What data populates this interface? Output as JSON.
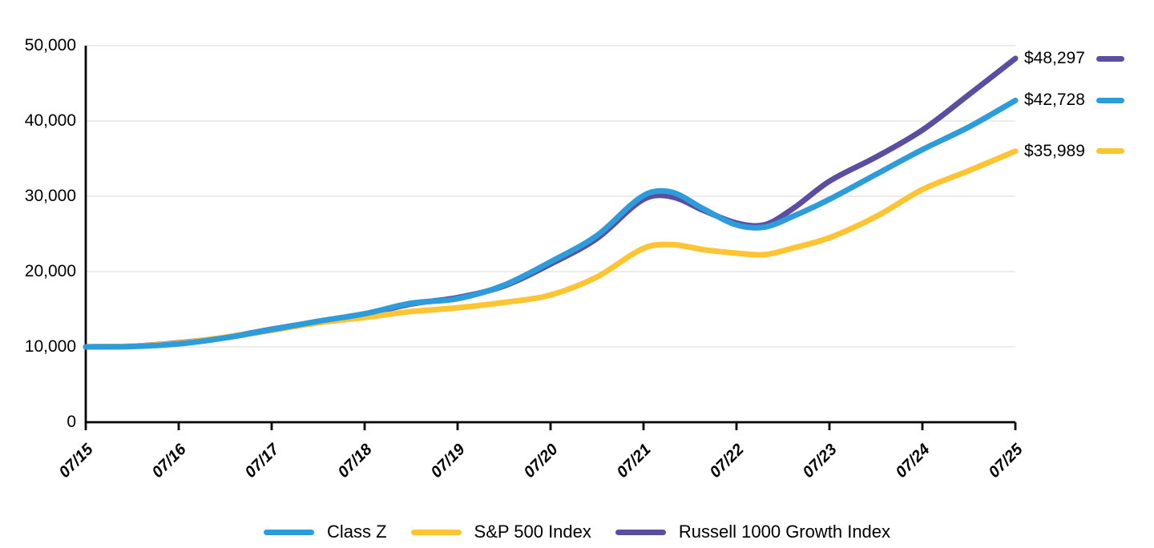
{
  "chart_data": {
    "type": "line",
    "title": "",
    "x_axis": {
      "tick_labels": [
        "07/15",
        "07/16",
        "07/17",
        "07/18",
        "07/19",
        "07/20",
        "07/21",
        "07/22",
        "07/23",
        "07/24",
        "07/25"
      ]
    },
    "y_axis": {
      "min": 0,
      "max": 50000,
      "ticks": [
        {
          "value": 0,
          "label": "0"
        },
        {
          "value": 10000,
          "label": "10,000"
        },
        {
          "value": 20000,
          "label": "20,000"
        },
        {
          "value": 30000,
          "label": "30,000"
        },
        {
          "value": 40000,
          "label": "40,000"
        },
        {
          "value": 50000,
          "label": "50,000"
        }
      ]
    },
    "grid": "horizontal",
    "legend_position": "bottom",
    "draw_order": [
      2,
      1,
      0
    ],
    "series": [
      {
        "name": "Class Z",
        "color": "#2D9CDB",
        "end_label": "$42,728",
        "end_value": 42728,
        "points": [
          [
            0,
            10000
          ],
          [
            0.5,
            10050
          ],
          [
            1,
            10400
          ],
          [
            1.5,
            11200
          ],
          [
            2,
            12300
          ],
          [
            2.5,
            13400
          ],
          [
            3,
            14400
          ],
          [
            3.5,
            15800
          ],
          [
            4,
            16400
          ],
          [
            4.5,
            18200
          ],
          [
            5,
            21300
          ],
          [
            5.5,
            24800
          ],
          [
            6,
            30100
          ],
          [
            6.3,
            30550
          ],
          [
            6.65,
            28300
          ],
          [
            7,
            26200
          ],
          [
            7.3,
            25900
          ],
          [
            7.6,
            27300
          ],
          [
            8,
            29600
          ],
          [
            8.5,
            32900
          ],
          [
            9,
            36200
          ],
          [
            9.5,
            39200
          ],
          [
            10,
            42728
          ]
        ]
      },
      {
        "name": "S&P 500 Index",
        "color": "#FFC431",
        "end_label": "$35,989",
        "end_value": 35989,
        "points": [
          [
            0,
            10000
          ],
          [
            0.5,
            10100
          ],
          [
            1,
            10500
          ],
          [
            1.5,
            11300
          ],
          [
            2,
            12200
          ],
          [
            2.5,
            13200
          ],
          [
            3,
            13900
          ],
          [
            3.5,
            14700
          ],
          [
            4,
            15200
          ],
          [
            4.5,
            15900
          ],
          [
            5,
            16900
          ],
          [
            5.5,
            19300
          ],
          [
            6,
            23100
          ],
          [
            6.3,
            23600
          ],
          [
            6.65,
            22900
          ],
          [
            7,
            22450
          ],
          [
            7.3,
            22250
          ],
          [
            7.6,
            23100
          ],
          [
            8,
            24500
          ],
          [
            8.5,
            27300
          ],
          [
            9,
            30900
          ],
          [
            9.5,
            33400
          ],
          [
            10,
            35989
          ]
        ]
      },
      {
        "name": "Russell 1000 Growth Index",
        "color": "#5B4EA2",
        "end_label": "$48,297",
        "end_value": 48297,
        "points": [
          [
            0,
            10000
          ],
          [
            0.5,
            10100
          ],
          [
            1,
            10550
          ],
          [
            1.5,
            11250
          ],
          [
            2,
            12350
          ],
          [
            2.5,
            13350
          ],
          [
            3,
            14300
          ],
          [
            3.5,
            15700
          ],
          [
            4,
            16550
          ],
          [
            4.5,
            18100
          ],
          [
            5,
            21000
          ],
          [
            5.5,
            24400
          ],
          [
            6,
            29600
          ],
          [
            6.3,
            29950
          ],
          [
            6.65,
            28100
          ],
          [
            7,
            26450
          ],
          [
            7.3,
            26200
          ],
          [
            7.6,
            28300
          ],
          [
            8,
            32000
          ],
          [
            8.5,
            35200
          ],
          [
            9,
            38800
          ],
          [
            9.5,
            43500
          ],
          [
            10,
            48297
          ]
        ]
      }
    ]
  },
  "colors": {
    "axis": "#000000",
    "grid": "#E6E6E6",
    "background": "#FFFFFF",
    "text": "#000000"
  }
}
